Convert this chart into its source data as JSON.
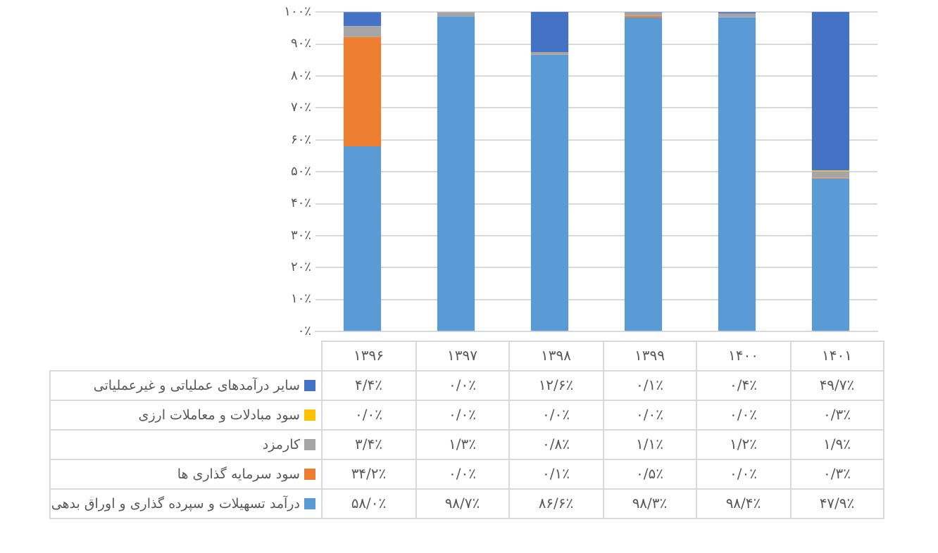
{
  "chart_data": {
    "type": "bar",
    "stacked": true,
    "categories": [
      "۱۳۹۶",
      "۱۳۹۷",
      "۱۳۹۸",
      "۱۳۹۹",
      "۱۴۰۰",
      "۱۴۰۱"
    ],
    "series": [
      {
        "name": "درآمد تسهیلات و سپرده گذاری و اوراق بدهی",
        "color": "#5b9bd5",
        "values": [
          58.0,
          98.7,
          86.6,
          98.3,
          98.4,
          47.9
        ],
        "value_labels": [
          "۵۸/۰٪",
          "۹۸/۷٪",
          "۸۶/۶٪",
          "۹۸/۳٪",
          "۹۸/۴٪",
          "۴۷/۹٪"
        ]
      },
      {
        "name": "سود سرمایه گذاری ها",
        "color": "#ed7d31",
        "values": [
          34.2,
          0.0,
          0.1,
          0.5,
          0.0,
          0.3
        ],
        "value_labels": [
          "۳۴/۲٪",
          "۰/۰٪",
          "۰/۱٪",
          "۰/۵٪",
          "۰/۰٪",
          "۰/۳٪"
        ]
      },
      {
        "name": "کارمزد",
        "color": "#a5a5a5",
        "values": [
          3.4,
          1.3,
          0.8,
          1.1,
          1.2,
          1.9
        ],
        "value_labels": [
          "۳/۴٪",
          "۱/۳٪",
          "۰/۸٪",
          "۱/۱٪",
          "۱/۲٪",
          "۱/۹٪"
        ]
      },
      {
        "name": "سود مبادلات و معاملات ارزی",
        "color": "#ffc000",
        "values": [
          0.0,
          0.0,
          0.0,
          0.0,
          0.0,
          0.3
        ],
        "value_labels": [
          "۰/۰٪",
          "۰/۰٪",
          "۰/۰٪",
          "۰/۰٪",
          "۰/۰٪",
          "۰/۳٪"
        ]
      },
      {
        "name": "سایر درآمدهای عملیاتی و غیرعملیاتی",
        "color": "#4472c4",
        "values": [
          4.4,
          0.0,
          12.6,
          0.1,
          0.4,
          49.7
        ],
        "value_labels": [
          "۴/۴٪",
          "۰/۰٪",
          "۱۲/۶٪",
          "۰/۱٪",
          "۰/۴٪",
          "۴۹/۷٪"
        ]
      }
    ],
    "ylim": [
      0,
      100.1
    ],
    "yticks": [
      {
        "value": 0,
        "label": "۰٪"
      },
      {
        "value": 10,
        "label": "۱۰٪"
      },
      {
        "value": 20,
        "label": "۲۰٪"
      },
      {
        "value": 30,
        "label": "۳۰٪"
      },
      {
        "value": 40,
        "label": "۴۰٪"
      },
      {
        "value": 50,
        "label": "۵۰٪"
      },
      {
        "value": 60,
        "label": "۶۰٪"
      },
      {
        "value": 70,
        "label": "۷۰٪"
      },
      {
        "value": 80,
        "label": "۸۰٪"
      },
      {
        "value": 90,
        "label": "۹۰٪"
      },
      {
        "value": 100,
        "label": "۱۰۰٪"
      }
    ],
    "grid": "y",
    "legend": "bottom"
  }
}
